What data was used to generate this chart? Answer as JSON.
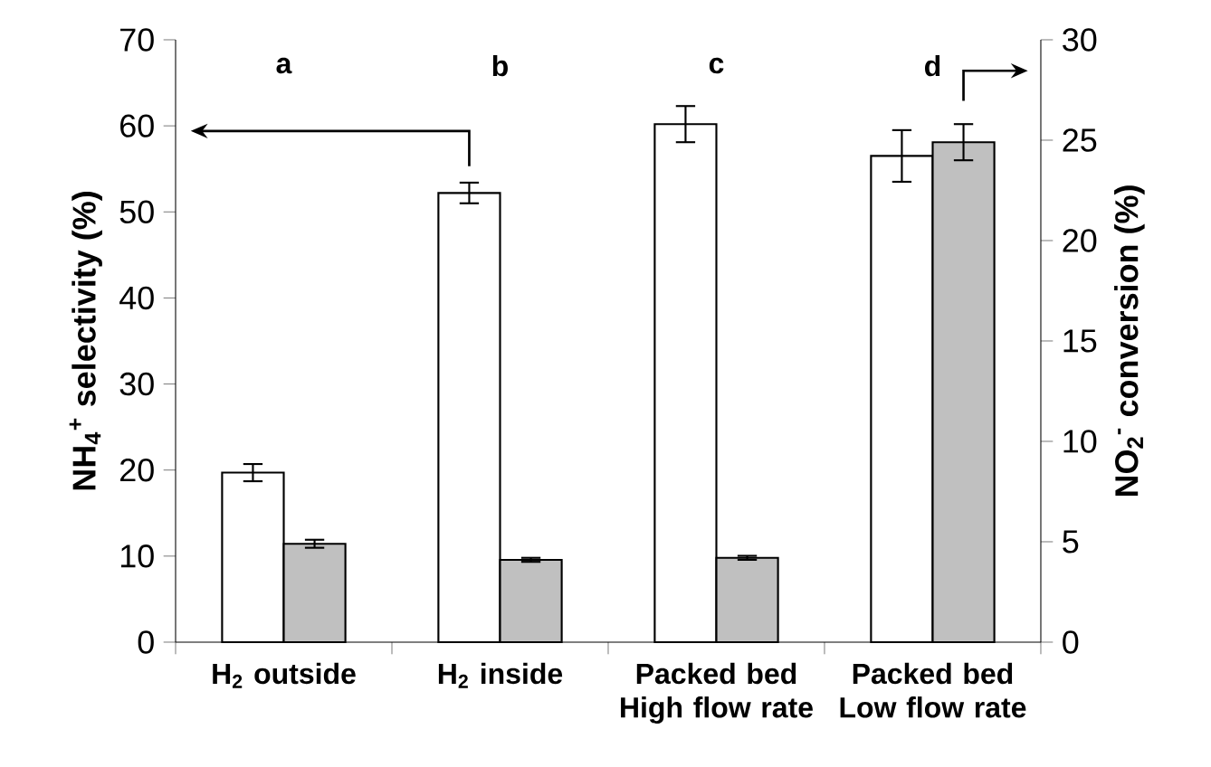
{
  "chart_data": {
    "type": "bar",
    "categories": [
      "H$_{2}$ outside",
      "H$_{2}$ inside",
      "Packed bed High flow rate",
      "Packed bed Low flow rate"
    ],
    "series": [
      {
        "color": "#ffffff",
        "values": [
          19.7,
          52.2,
          60.2,
          56.5
        ],
        "errors": [
          1.0,
          1.2,
          2.1,
          3.0
        ]
      },
      {
        "color": "#c0c0c0",
        "axis": "y2",
        "values": [
          4.9,
          4.1,
          4.2,
          24.9
        ],
        "errors": [
          0.2,
          0.1,
          0.1,
          0.9
        ]
      }
    ],
    "ylabel": "NH$_{4}$$^{+}$ selectivity (%)",
    "y2label": "NO$_{2}$$^{-}$ conversion (%)",
    "ylim": [
      0,
      70
    ],
    "yticks": [
      0,
      10,
      20,
      30,
      40,
      50,
      60,
      70
    ],
    "y2lim": [
      0,
      30
    ],
    "y2ticks": [
      0,
      5,
      10,
      15,
      20,
      25,
      30
    ],
    "annotations": [
      "a",
      "b",
      "c",
      "d"
    ]
  }
}
